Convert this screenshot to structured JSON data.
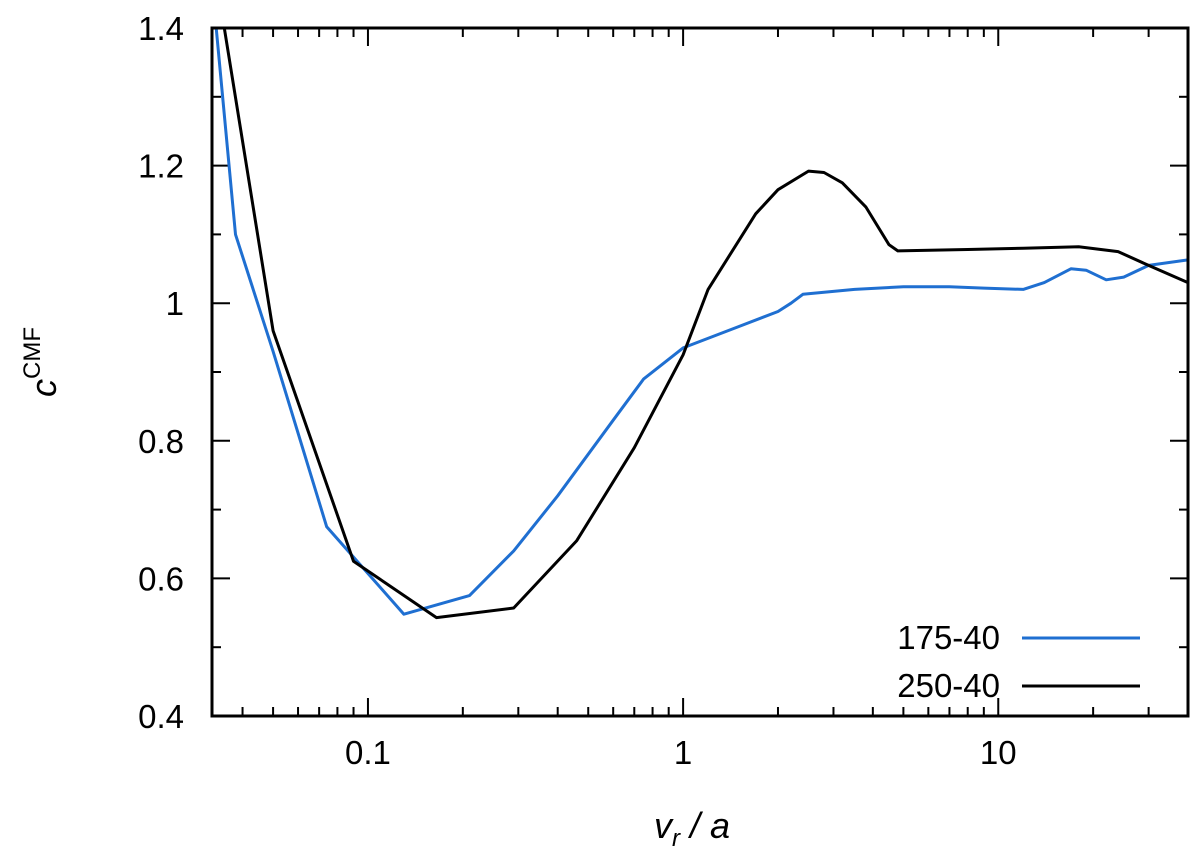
{
  "chart_data": {
    "type": "line",
    "title": "",
    "xlabel": {
      "main": "v",
      "sub": "r",
      "rest": " / a"
    },
    "ylabel": {
      "main": "c",
      "sup": "CMF"
    },
    "xscale": "log",
    "xlim": [
      0.032,
      40
    ],
    "ylim": [
      0.4,
      1.4
    ],
    "grid": false,
    "legend_position": "bottom-right",
    "x_ticks": [
      {
        "value": 0.1,
        "label": "0.1"
      },
      {
        "value": 1,
        "label": "1"
      },
      {
        "value": 10,
        "label": "10"
      }
    ],
    "y_ticks": [
      {
        "value": 0.4,
        "label": "0.4"
      },
      {
        "value": 0.6,
        "label": "0.6"
      },
      {
        "value": 0.8,
        "label": "0.8"
      },
      {
        "value": 1.0,
        "label": "1"
      },
      {
        "value": 1.2,
        "label": "1.2"
      },
      {
        "value": 1.4,
        "label": "1.4"
      }
    ],
    "series": [
      {
        "name": "175-40",
        "color": "#1f6fd1",
        "points": [
          [
            0.033,
            1.4
          ],
          [
            0.038,
            1.1
          ],
          [
            0.05,
            0.93
          ],
          [
            0.074,
            0.675
          ],
          [
            0.13,
            0.548
          ],
          [
            0.21,
            0.575
          ],
          [
            0.29,
            0.64
          ],
          [
            0.4,
            0.72
          ],
          [
            0.6,
            0.83
          ],
          [
            0.75,
            0.89
          ],
          [
            1.0,
            0.935
          ],
          [
            1.5,
            0.966
          ],
          [
            2.0,
            0.988
          ],
          [
            2.2,
            1.0
          ],
          [
            2.4,
            1.013
          ],
          [
            3.5,
            1.02
          ],
          [
            5.0,
            1.024
          ],
          [
            7.0,
            1.024
          ],
          [
            9.0,
            1.022
          ],
          [
            12.0,
            1.02
          ],
          [
            14.0,
            1.03
          ],
          [
            17.0,
            1.05
          ],
          [
            19.0,
            1.048
          ],
          [
            22.0,
            1.034
          ],
          [
            25.0,
            1.038
          ],
          [
            30.0,
            1.055
          ],
          [
            40.0,
            1.063
          ]
        ]
      },
      {
        "name": "250-40",
        "color": "#000000",
        "points": [
          [
            0.035,
            1.4
          ],
          [
            0.05,
            0.96
          ],
          [
            0.09,
            0.625
          ],
          [
            0.165,
            0.543
          ],
          [
            0.29,
            0.557
          ],
          [
            0.46,
            0.655
          ],
          [
            0.7,
            0.79
          ],
          [
            1.0,
            0.925
          ],
          [
            1.2,
            1.02
          ],
          [
            1.7,
            1.13
          ],
          [
            2.0,
            1.165
          ],
          [
            2.5,
            1.192
          ],
          [
            2.8,
            1.19
          ],
          [
            3.2,
            1.175
          ],
          [
            3.8,
            1.14
          ],
          [
            4.5,
            1.085
          ],
          [
            4.8,
            1.076
          ],
          [
            8.0,
            1.078
          ],
          [
            12.0,
            1.08
          ],
          [
            18.0,
            1.082
          ],
          [
            24.0,
            1.075
          ],
          [
            30.0,
            1.055
          ],
          [
            40.0,
            1.03
          ]
        ]
      }
    ]
  }
}
